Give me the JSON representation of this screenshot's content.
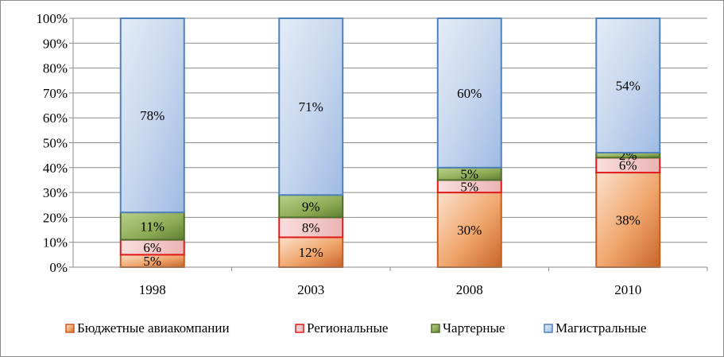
{
  "chart_data": {
    "type": "bar",
    "stacked": true,
    "percent_stacked": true,
    "categories": [
      "1998",
      "2003",
      "2008",
      "2010"
    ],
    "series": [
      {
        "name": "Бюджетные авиакомпании",
        "values": [
          5,
          12,
          30,
          38
        ],
        "labels": [
          "5%",
          "12%",
          "30%",
          "38%"
        ],
        "color": "#e8894a",
        "border": "#c65e1f"
      },
      {
        "name": "Региональные",
        "values": [
          6,
          8,
          5,
          6
        ],
        "labels": [
          "6%",
          "8%",
          "5%",
          "6%"
        ],
        "color": "#f2c9c9",
        "border": "#e01b1b"
      },
      {
        "name": "Чартерные",
        "values": [
          11,
          9,
          5,
          2
        ],
        "labels": [
          "11%",
          "9%",
          "5%",
          "2%"
        ],
        "color": "#8fae5a",
        "border": "#4f6e2b"
      },
      {
        "name": "Магистральные",
        "values": [
          78,
          71,
          60,
          54
        ],
        "labels": [
          "78%",
          "71%",
          "60%",
          "54%"
        ],
        "color": "#b8cdea",
        "border": "#4f81bd"
      }
    ],
    "y_ticks": [
      "0%",
      "10%",
      "20%",
      "30%",
      "40%",
      "50%",
      "60%",
      "70%",
      "80%",
      "90%",
      "100%"
    ],
    "ylim": [
      0,
      100
    ],
    "grid": true,
    "legend_position": "bottom"
  }
}
